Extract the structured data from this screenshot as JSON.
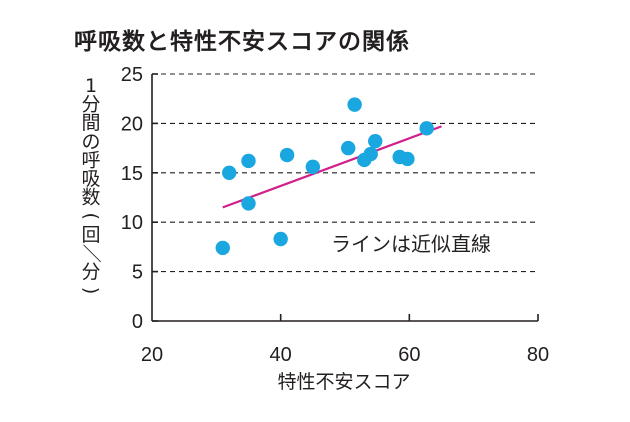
{
  "chart_data": {
    "type": "scatter",
    "title": "呼吸数と特性不安スコアの関係",
    "xlabel": "特性不安スコア",
    "ylabel": "1分間の呼吸数(回／分)",
    "xlim": [
      20,
      80
    ],
    "ylim": [
      0,
      25
    ],
    "xticks": [
      20,
      40,
      60,
      80
    ],
    "yticks": [
      0,
      5,
      10,
      15,
      20,
      25
    ],
    "grid": "horizontal-dashed",
    "point_color": "#1aa7e0",
    "line_color": "#d1208b",
    "points": [
      {
        "x": 31,
        "y": 7.4
      },
      {
        "x": 32,
        "y": 15.0
      },
      {
        "x": 35,
        "y": 16.2
      },
      {
        "x": 35,
        "y": 11.9
      },
      {
        "x": 40,
        "y": 8.3
      },
      {
        "x": 41,
        "y": 16.8
      },
      {
        "x": 45,
        "y": 15.6
      },
      {
        "x": 50.5,
        "y": 17.5
      },
      {
        "x": 51.5,
        "y": 21.9
      },
      {
        "x": 53,
        "y": 16.3
      },
      {
        "x": 54,
        "y": 16.9
      },
      {
        "x": 54.7,
        "y": 18.2
      },
      {
        "x": 58.5,
        "y": 16.6
      },
      {
        "x": 59.7,
        "y": 16.4
      },
      {
        "x": 62.7,
        "y": 19.5
      }
    ],
    "trend_line": {
      "x1": 31,
      "y1": 11.5,
      "x2": 65,
      "y2": 19.7
    },
    "annotation": "ラインは近似直線"
  }
}
